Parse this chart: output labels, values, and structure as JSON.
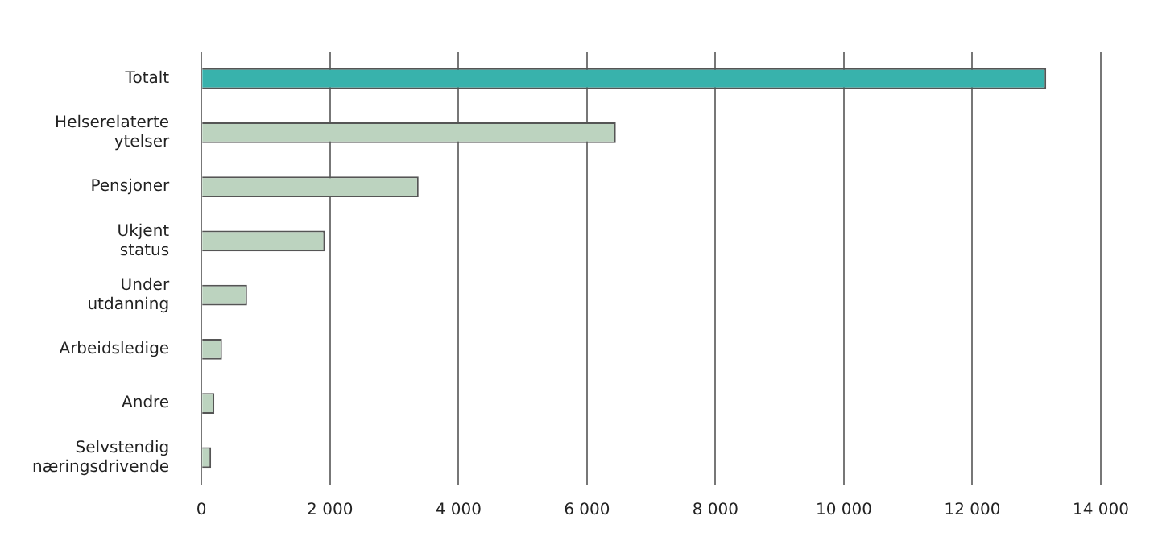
{
  "chart_data": {
    "type": "bar",
    "orientation": "horizontal",
    "categories": [
      "Totalt",
      "Helserelaterte ytelser",
      "Pensjoner",
      "Ukjent status",
      "Under utdanning",
      "Arbeidsledige",
      "Andre",
      "Selvstendig næringsdrivende"
    ],
    "values": [
      13150,
      6450,
      3380,
      1920,
      710,
      320,
      200,
      150
    ],
    "colors": [
      "#38b2ac",
      "#bcd3bf",
      "#bcd3bf",
      "#bcd3bf",
      "#bcd3bf",
      "#bcd3bf",
      "#bcd3bf",
      "#bcd3bf"
    ],
    "xlim": [
      0,
      14000
    ],
    "xticks": [
      {
        "value": 0,
        "label": "0"
      },
      {
        "value": 2000,
        "label": "2 000"
      },
      {
        "value": 4000,
        "label": "4 000"
      },
      {
        "value": 6000,
        "label": "6 000"
      },
      {
        "value": 8000,
        "label": "8 000"
      },
      {
        "value": 10000,
        "label": "10 000"
      },
      {
        "value": 12000,
        "label": "12 000"
      },
      {
        "value": 14000,
        "label": "14 000"
      }
    ],
    "grid": "x",
    "legend": false
  }
}
